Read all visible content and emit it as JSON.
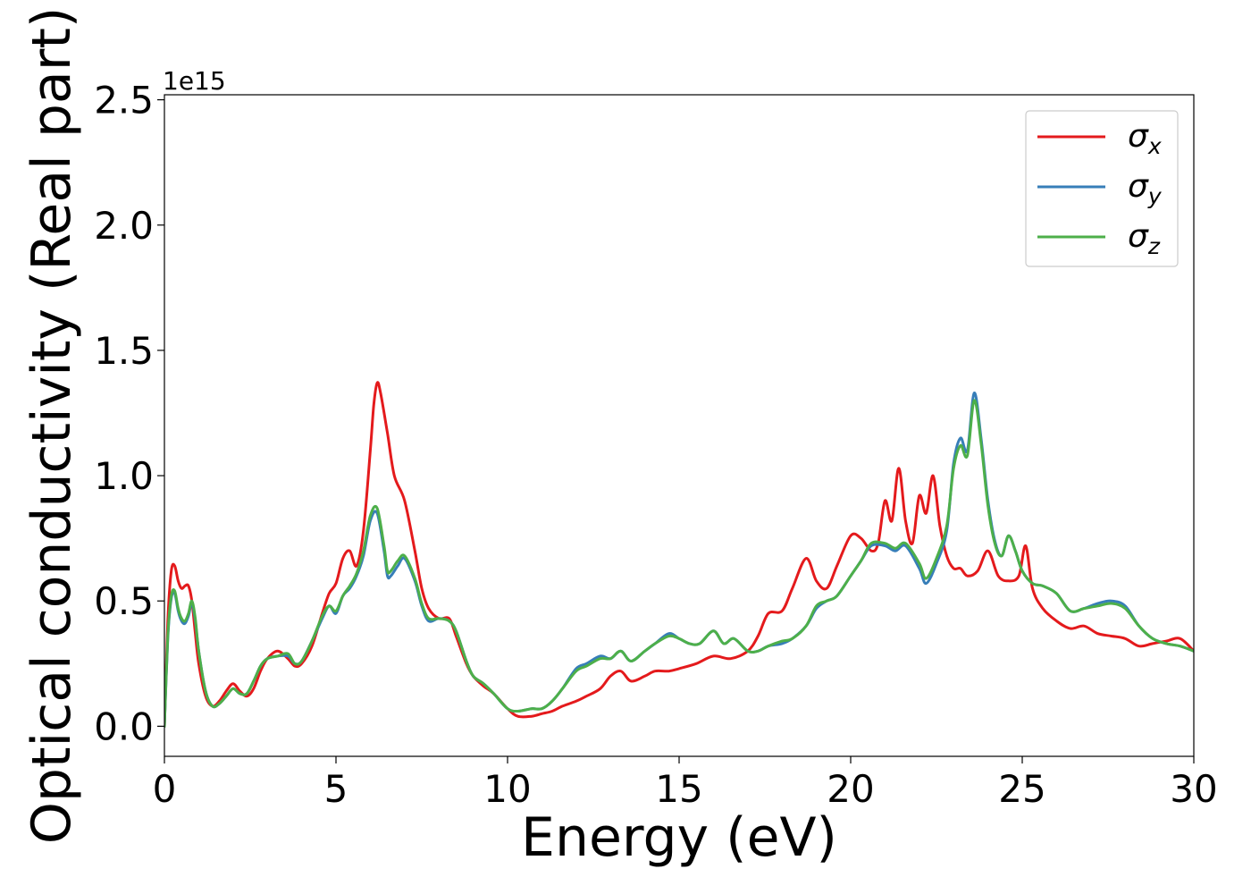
{
  "chart_data": {
    "type": "line",
    "title": "",
    "xlabel": "Energy (eV)",
    "ylabel": "Optical conductivity (Real part)",
    "y_offset_label": "1e15",
    "xlim": [
      0,
      30
    ],
    "ylim": [
      -0.12,
      2.52
    ],
    "x_ticks": [
      0,
      5,
      10,
      15,
      20,
      25,
      30
    ],
    "x_tick_labels": [
      "0",
      "5",
      "10",
      "15",
      "20",
      "25",
      "30"
    ],
    "y_ticks": [
      0.0,
      0.5,
      1.0,
      1.5,
      2.0,
      2.5
    ],
    "y_tick_labels": [
      "0.0",
      "0.5",
      "1.0",
      "1.5",
      "2.0",
      "2.5"
    ],
    "grid": false,
    "legend_position": "top-right",
    "series": [
      {
        "name": "σx",
        "label_base": "σ",
        "label_sub": "x",
        "color": "#e41a1c",
        "x": [
          0,
          0.1,
          0.2,
          0.3,
          0.4,
          0.5,
          0.6,
          0.7,
          0.8,
          0.9,
          1.0,
          1.2,
          1.4,
          1.6,
          1.8,
          2.0,
          2.2,
          2.4,
          2.6,
          2.8,
          3.0,
          3.3,
          3.6,
          3.8,
          4.0,
          4.3,
          4.6,
          4.8,
          5.0,
          5.2,
          5.4,
          5.6,
          5.8,
          6.0,
          6.1,
          6.2,
          6.3,
          6.5,
          6.7,
          7.0,
          7.3,
          7.5,
          7.7,
          8.0,
          8.3,
          8.5,
          8.8,
          9.0,
          9.3,
          9.6,
          10.0,
          10.3,
          10.7,
          11.0,
          11.3,
          11.6,
          12.0,
          12.3,
          12.7,
          13.0,
          13.3,
          13.6,
          14.0,
          14.3,
          14.7,
          15.0,
          15.5,
          16.0,
          16.5,
          17.0,
          17.3,
          17.6,
          18.0,
          18.3,
          18.7,
          19.0,
          19.3,
          19.6,
          20.0,
          20.3,
          20.6,
          20.8,
          21.0,
          21.2,
          21.4,
          21.6,
          21.8,
          22.0,
          22.2,
          22.4,
          22.6,
          22.8,
          23.0,
          23.2,
          23.4,
          23.7,
          24.0,
          24.3,
          24.6,
          24.9,
          25.1,
          25.3,
          25.6,
          26.0,
          26.4,
          26.8,
          27.2,
          27.6,
          28.0,
          28.4,
          28.8,
          29.2,
          29.6,
          30.0
        ],
        "values": [
          0.0,
          0.42,
          0.62,
          0.64,
          0.58,
          0.55,
          0.56,
          0.56,
          0.5,
          0.37,
          0.25,
          0.12,
          0.08,
          0.1,
          0.14,
          0.17,
          0.14,
          0.12,
          0.15,
          0.22,
          0.27,
          0.3,
          0.27,
          0.24,
          0.25,
          0.32,
          0.45,
          0.53,
          0.57,
          0.67,
          0.7,
          0.64,
          0.78,
          1.1,
          1.28,
          1.37,
          1.33,
          1.17,
          1.0,
          0.9,
          0.7,
          0.55,
          0.47,
          0.43,
          0.43,
          0.36,
          0.25,
          0.2,
          0.16,
          0.13,
          0.07,
          0.04,
          0.04,
          0.05,
          0.06,
          0.08,
          0.1,
          0.12,
          0.15,
          0.2,
          0.22,
          0.18,
          0.2,
          0.22,
          0.22,
          0.23,
          0.25,
          0.28,
          0.27,
          0.3,
          0.36,
          0.45,
          0.46,
          0.55,
          0.67,
          0.58,
          0.55,
          0.64,
          0.76,
          0.75,
          0.7,
          0.73,
          0.9,
          0.82,
          1.03,
          0.82,
          0.73,
          0.92,
          0.85,
          1.0,
          0.8,
          0.68,
          0.63,
          0.63,
          0.6,
          0.62,
          0.7,
          0.6,
          0.58,
          0.6,
          0.72,
          0.55,
          0.47,
          0.42,
          0.39,
          0.4,
          0.37,
          0.36,
          0.35,
          0.32,
          0.33,
          0.34,
          0.35,
          0.3
        ]
      },
      {
        "name": "σy",
        "label_base": "σ",
        "label_sub": "y",
        "color": "#377eb8",
        "x": [
          0,
          0.1,
          0.2,
          0.3,
          0.4,
          0.5,
          0.6,
          0.7,
          0.8,
          0.9,
          1.0,
          1.2,
          1.4,
          1.6,
          1.8,
          2.0,
          2.2,
          2.4,
          2.6,
          2.8,
          3.0,
          3.3,
          3.6,
          3.8,
          4.0,
          4.3,
          4.6,
          4.8,
          5.0,
          5.2,
          5.4,
          5.6,
          5.8,
          6.0,
          6.2,
          6.4,
          6.5,
          6.6,
          6.8,
          7.0,
          7.3,
          7.5,
          7.7,
          8.0,
          8.3,
          8.5,
          8.8,
          9.0,
          9.3,
          9.6,
          10.0,
          10.3,
          10.7,
          11.0,
          11.3,
          11.6,
          12.0,
          12.3,
          12.7,
          13.0,
          13.3,
          13.6,
          14.0,
          14.3,
          14.7,
          15.0,
          15.3,
          15.6,
          16.0,
          16.3,
          16.6,
          17.0,
          17.3,
          17.6,
          18.0,
          18.3,
          18.7,
          19.0,
          19.3,
          19.6,
          20.0,
          20.3,
          20.6,
          21.0,
          21.3,
          21.6,
          22.0,
          22.2,
          22.5,
          22.8,
          23.0,
          23.2,
          23.4,
          23.6,
          23.8,
          24.0,
          24.2,
          24.4,
          24.6,
          24.8,
          25.0,
          25.3,
          25.6,
          26.0,
          26.4,
          26.8,
          27.2,
          27.6,
          28.0,
          28.4,
          28.8,
          29.2,
          29.6,
          30.0
        ],
        "values": [
          0.0,
          0.35,
          0.51,
          0.53,
          0.46,
          0.42,
          0.41,
          0.44,
          0.49,
          0.42,
          0.3,
          0.14,
          0.08,
          0.09,
          0.12,
          0.15,
          0.13,
          0.13,
          0.18,
          0.24,
          0.27,
          0.28,
          0.28,
          0.25,
          0.26,
          0.34,
          0.43,
          0.48,
          0.45,
          0.52,
          0.55,
          0.6,
          0.68,
          0.82,
          0.85,
          0.7,
          0.6,
          0.6,
          0.64,
          0.67,
          0.58,
          0.48,
          0.42,
          0.43,
          0.42,
          0.38,
          0.26,
          0.2,
          0.17,
          0.13,
          0.07,
          0.06,
          0.07,
          0.07,
          0.1,
          0.15,
          0.23,
          0.25,
          0.28,
          0.27,
          0.3,
          0.26,
          0.3,
          0.33,
          0.37,
          0.35,
          0.33,
          0.33,
          0.38,
          0.33,
          0.35,
          0.3,
          0.3,
          0.32,
          0.33,
          0.35,
          0.4,
          0.47,
          0.5,
          0.52,
          0.6,
          0.66,
          0.72,
          0.72,
          0.7,
          0.72,
          0.63,
          0.57,
          0.65,
          0.78,
          1.05,
          1.15,
          1.1,
          1.33,
          1.15,
          0.9,
          0.74,
          0.68,
          0.76,
          0.7,
          0.62,
          0.57,
          0.56,
          0.53,
          0.46,
          0.47,
          0.49,
          0.5,
          0.48,
          0.4,
          0.35,
          0.33,
          0.32,
          0.3
        ]
      },
      {
        "name": "σz",
        "label_base": "σ",
        "label_sub": "z",
        "color": "#4daf4a",
        "x": [
          0,
          0.1,
          0.2,
          0.3,
          0.4,
          0.5,
          0.6,
          0.7,
          0.8,
          0.9,
          1.0,
          1.2,
          1.4,
          1.6,
          1.8,
          2.0,
          2.2,
          2.4,
          2.6,
          2.8,
          3.0,
          3.3,
          3.6,
          3.8,
          4.0,
          4.3,
          4.6,
          4.8,
          5.0,
          5.2,
          5.4,
          5.6,
          5.8,
          6.0,
          6.2,
          6.4,
          6.5,
          6.6,
          6.8,
          7.0,
          7.3,
          7.5,
          7.7,
          8.0,
          8.3,
          8.5,
          8.8,
          9.0,
          9.3,
          9.6,
          10.0,
          10.3,
          10.7,
          11.0,
          11.3,
          11.6,
          12.0,
          12.3,
          12.7,
          13.0,
          13.3,
          13.6,
          14.0,
          14.3,
          14.7,
          15.0,
          15.3,
          15.6,
          16.0,
          16.3,
          16.6,
          17.0,
          17.3,
          17.6,
          18.0,
          18.3,
          18.7,
          19.0,
          19.3,
          19.6,
          20.0,
          20.3,
          20.6,
          21.0,
          21.3,
          21.6,
          22.0,
          22.2,
          22.5,
          22.8,
          23.0,
          23.2,
          23.4,
          23.6,
          23.8,
          24.0,
          24.2,
          24.4,
          24.6,
          24.8,
          25.0,
          25.3,
          25.6,
          26.0,
          26.4,
          26.8,
          27.2,
          27.6,
          28.0,
          28.4,
          28.8,
          29.2,
          29.6,
          30.0
        ],
        "values": [
          0.0,
          0.36,
          0.52,
          0.54,
          0.47,
          0.43,
          0.42,
          0.45,
          0.5,
          0.43,
          0.3,
          0.14,
          0.08,
          0.09,
          0.12,
          0.15,
          0.13,
          0.13,
          0.18,
          0.24,
          0.27,
          0.28,
          0.29,
          0.25,
          0.26,
          0.34,
          0.44,
          0.48,
          0.46,
          0.52,
          0.56,
          0.61,
          0.7,
          0.84,
          0.87,
          0.72,
          0.62,
          0.62,
          0.66,
          0.68,
          0.59,
          0.49,
          0.43,
          0.43,
          0.42,
          0.38,
          0.26,
          0.2,
          0.17,
          0.13,
          0.07,
          0.06,
          0.07,
          0.07,
          0.1,
          0.15,
          0.22,
          0.24,
          0.27,
          0.27,
          0.3,
          0.26,
          0.3,
          0.33,
          0.36,
          0.35,
          0.33,
          0.33,
          0.38,
          0.33,
          0.35,
          0.3,
          0.3,
          0.32,
          0.34,
          0.35,
          0.4,
          0.48,
          0.5,
          0.52,
          0.6,
          0.66,
          0.73,
          0.73,
          0.71,
          0.73,
          0.65,
          0.59,
          0.67,
          0.8,
          1.03,
          1.12,
          1.08,
          1.3,
          1.13,
          0.88,
          0.73,
          0.68,
          0.76,
          0.7,
          0.62,
          0.57,
          0.56,
          0.53,
          0.46,
          0.47,
          0.48,
          0.49,
          0.47,
          0.4,
          0.35,
          0.33,
          0.32,
          0.3
        ]
      }
    ]
  }
}
